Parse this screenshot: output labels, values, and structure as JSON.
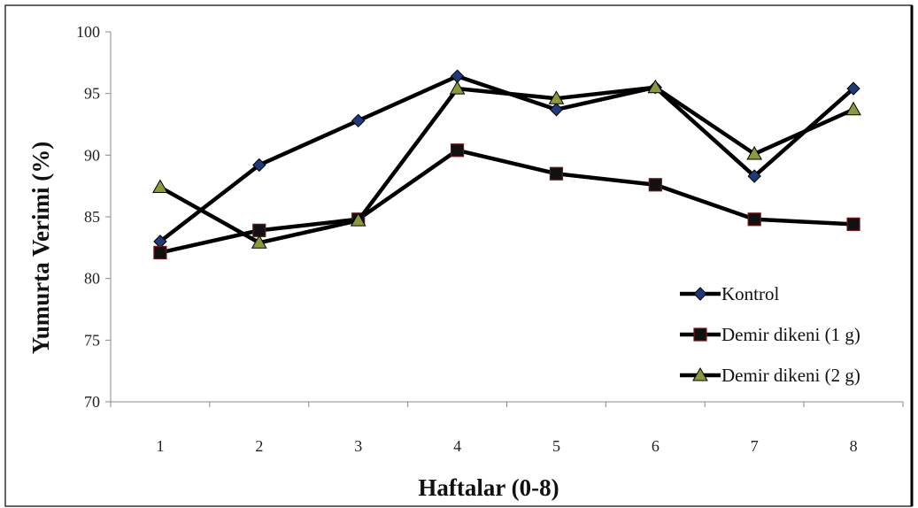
{
  "chart_data": {
    "type": "line",
    "title": "",
    "xlabel": "Haftalar (0-8)",
    "ylabel": "Yumurta Verimi (%)",
    "x": [
      1,
      2,
      3,
      4,
      5,
      6,
      7,
      8
    ],
    "ylim": [
      70,
      100
    ],
    "yticks": [
      70,
      75,
      80,
      85,
      90,
      95,
      100
    ],
    "grid": false,
    "legend_position": "lower-right",
    "series": [
      {
        "name": "Kontrol",
        "marker": "diamond",
        "marker_color": "#1f3a7a",
        "line_color": "#000000",
        "values": [
          83.0,
          89.2,
          92.8,
          96.4,
          93.7,
          95.5,
          88.3,
          95.4
        ]
      },
      {
        "name": "Demir dikeni (1 g)",
        "marker": "square",
        "marker_color": "#111111",
        "line_color": "#000000",
        "values": [
          82.1,
          83.9,
          84.8,
          90.4,
          88.5,
          87.6,
          84.8,
          84.4
        ]
      },
      {
        "name": "Demir dikeni (2 g)",
        "marker": "triangle",
        "marker_color": "#8a9a3a",
        "line_color": "#000000",
        "values": [
          87.4,
          82.9,
          84.7,
          95.4,
          94.6,
          95.5,
          90.1,
          93.7
        ]
      }
    ]
  }
}
